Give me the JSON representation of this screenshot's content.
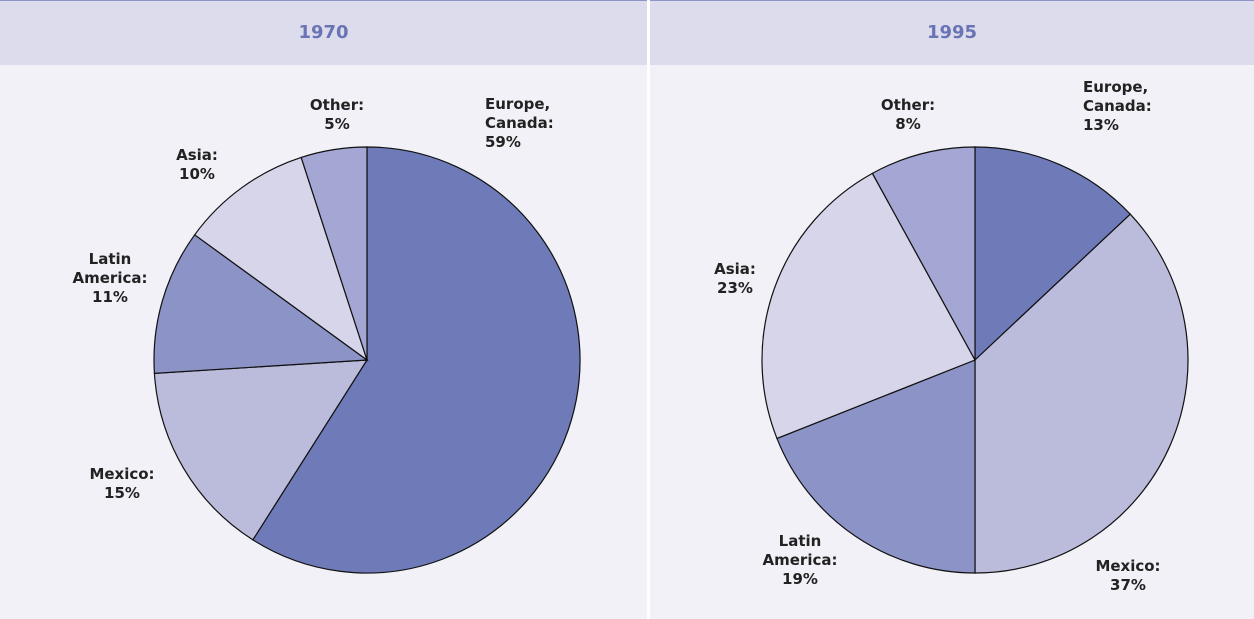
{
  "chart_data": [
    {
      "type": "pie",
      "title": "1970",
      "categories": [
        "Europe, Canada:",
        "Mexico:",
        "Latin America:",
        "Asia:",
        "Other:"
      ],
      "values": [
        59,
        15,
        11,
        10,
        5
      ],
      "value_labels": [
        "59%",
        "15%",
        "11%",
        "10%",
        "5%"
      ],
      "colors": [
        "#6f7bb8",
        "#bbbcdc",
        "#8c93c6",
        "#d6d5ea",
        "#a4a6d3"
      ]
    },
    {
      "type": "pie",
      "title": "1995",
      "categories": [
        "Europe, Canada:",
        "Mexico:",
        "Latin America:",
        "Asia:",
        "Other:"
      ],
      "values": [
        13,
        37,
        19,
        23,
        8
      ],
      "value_labels": [
        "13%",
        "37%",
        "19%",
        "23%",
        "8%"
      ],
      "colors": [
        "#6f7bb8",
        "#bbbcdc",
        "#8c93c6",
        "#d6d5ea",
        "#a4a6d3"
      ]
    }
  ]
}
